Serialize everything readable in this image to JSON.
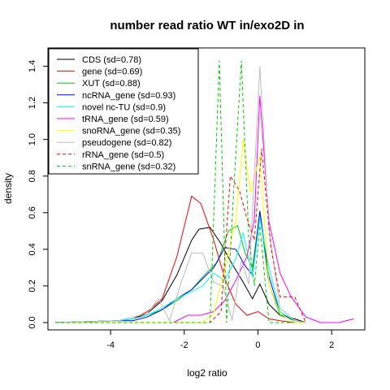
{
  "chart_data": {
    "type": "line",
    "title": "number read ratio WT in/exo2D in",
    "xlabel": "log2 ratio",
    "ylabel": "density",
    "xlim": [
      -5.7,
      2.9
    ],
    "ylim": [
      -0.04,
      1.5
    ],
    "x_ticks": [
      -4,
      -2,
      0,
      2
    ],
    "x_tick_labels": [
      "-4",
      "-2",
      "0",
      "2"
    ],
    "y_ticks": [
      0.0,
      0.2,
      0.4,
      0.6,
      0.8,
      1.0,
      1.2,
      1.4
    ],
    "y_tick_labels": [
      "0.0",
      "0.2",
      "0.4",
      "0.6",
      "0.8",
      "1.0",
      "1.2",
      "1.4"
    ],
    "grid": false,
    "legend_position": "top-left",
    "series": [
      {
        "name": "CDS (sd=0.78)",
        "color": "#000000",
        "dash": "solid",
        "x": [
          -5.5,
          -3.8,
          -3.4,
          -3.0,
          -2.6,
          -2.2,
          -1.8,
          -1.6,
          -1.3,
          -1.0,
          -0.7,
          -0.4,
          -0.15,
          0.05,
          0.3,
          0.6,
          1.0,
          1.3
        ],
        "y": [
          0.0,
          0.01,
          0.02,
          0.05,
          0.12,
          0.26,
          0.45,
          0.51,
          0.52,
          0.43,
          0.32,
          0.22,
          0.13,
          0.21,
          0.1,
          0.04,
          0.02,
          0.0
        ]
      },
      {
        "name": "gene (sd=0.69)",
        "color": "#ff0000",
        "dash": "solid",
        "x": [
          -5.5,
          -3.8,
          -3.4,
          -3.0,
          -2.6,
          -2.2,
          -1.8,
          -1.55,
          -1.2,
          -0.9,
          -0.6,
          -0.3,
          0.0,
          0.3,
          0.6,
          1.0,
          1.3
        ],
        "y": [
          0.0,
          0.01,
          0.02,
          0.06,
          0.13,
          0.36,
          0.69,
          0.65,
          0.45,
          0.24,
          0.1,
          0.04,
          0.06,
          0.02,
          0.01,
          0.0,
          0.0
        ]
      },
      {
        "name": "XUT (sd=0.88)",
        "color": "#00cc00",
        "dash": "solid",
        "x": [
          -5.5,
          -3.8,
          -3.4,
          -3.0,
          -2.6,
          -2.2,
          -1.8,
          -1.5,
          -1.1,
          -0.8,
          -0.55,
          -0.35,
          -0.15,
          0.05,
          0.3,
          0.6,
          1.0,
          1.3
        ],
        "y": [
          0.0,
          0.01,
          0.02,
          0.04,
          0.07,
          0.12,
          0.18,
          0.25,
          0.33,
          0.5,
          0.53,
          0.38,
          0.3,
          0.6,
          0.21,
          0.04,
          0.01,
          0.0
        ]
      },
      {
        "name": "ncRNA_gene (sd=0.93)",
        "color": "#0000ff",
        "dash": "solid",
        "x": [
          -5.5,
          -3.8,
          -3.4,
          -3.0,
          -2.6,
          -2.2,
          -1.8,
          -1.5,
          -1.2,
          -0.9,
          -0.6,
          -0.35,
          -0.15,
          0.05,
          0.3,
          0.6,
          1.0,
          1.3
        ],
        "y": [
          0.0,
          0.01,
          0.01,
          0.03,
          0.07,
          0.13,
          0.18,
          0.24,
          0.3,
          0.41,
          0.4,
          0.31,
          0.26,
          0.61,
          0.25,
          0.05,
          0.01,
          0.0
        ]
      },
      {
        "name": "novel nc-TU (sd=0.9)",
        "color": "#00ffff",
        "dash": "solid",
        "x": [
          -5.5,
          -3.8,
          -3.4,
          -3.0,
          -2.6,
          -2.2,
          -1.8,
          -1.5,
          -1.2,
          -0.9,
          -0.6,
          -0.4,
          -0.15,
          0.05,
          0.3,
          0.6,
          1.0,
          1.3
        ],
        "y": [
          0.0,
          0.01,
          0.02,
          0.04,
          0.08,
          0.13,
          0.17,
          0.2,
          0.27,
          0.23,
          0.35,
          0.49,
          0.25,
          0.57,
          0.3,
          0.06,
          0.01,
          0.0
        ]
      },
      {
        "name": "tRNA_gene (sd=0.59)",
        "color": "#ff00ff",
        "dash": "solid",
        "x": [
          -5.5,
          -2.3,
          -1.9,
          -1.55,
          -1.2,
          -0.9,
          -0.6,
          -0.3,
          -0.1,
          0.05,
          0.3,
          0.6,
          0.9,
          1.3,
          1.7,
          2.2,
          2.6
        ],
        "y": [
          0.0,
          0.0,
          0.04,
          0.04,
          0.06,
          0.12,
          0.23,
          0.36,
          0.56,
          1.24,
          0.55,
          0.27,
          0.14,
          0.03,
          0.0,
          0.0,
          0.02
        ]
      },
      {
        "name": "snoRNA_gene (sd=0.35)",
        "color": "#ffff00",
        "dash": "solid",
        "x": [
          -5.5,
          -1.5,
          -1.2,
          -0.9,
          -0.6,
          -0.4,
          -0.2,
          0.05,
          0.3,
          0.6,
          1.0,
          1.3
        ],
        "y": [
          0.0,
          0.0,
          0.05,
          0.3,
          0.56,
          1.0,
          0.71,
          0.91,
          0.21,
          0.05,
          0.0,
          0.0
        ]
      },
      {
        "name": "pseudogene (sd=0.82)",
        "color": "#bebebe",
        "dash": "solid",
        "x": [
          -5.5,
          -3.8,
          -3.0,
          -2.7,
          -2.4,
          -2.1,
          -1.8,
          -1.5,
          -1.2,
          -0.95,
          -0.7,
          -0.45,
          -0.25,
          0.05,
          0.3,
          0.6,
          1.0,
          1.3
        ],
        "y": [
          0.0,
          0.01,
          0.05,
          0.13,
          0.01,
          0.21,
          0.38,
          0.38,
          0.22,
          0.2,
          0.01,
          0.34,
          0.21,
          1.4,
          0.51,
          0.08,
          0.01,
          0.0
        ]
      },
      {
        "name": "rRNA_gene (sd=0.5)",
        "color": "#ff0000",
        "dash": "dashed",
        "x": [
          -5.5,
          -1.3,
          -1.0,
          -0.75,
          -0.5,
          -0.3,
          -0.1,
          0.1,
          0.35,
          0.6,
          1.0,
          1.3
        ],
        "y": [
          0.0,
          0.0,
          0.06,
          0.8,
          0.72,
          0.57,
          0.45,
          0.95,
          0.41,
          0.14,
          0.14,
          0.0
        ]
      },
      {
        "name": "snRNA_gene (sd=0.32)",
        "color": "#00cc00",
        "dash": "dashed",
        "x": [
          -5.5,
          -1.3,
          -1.05,
          -0.85,
          -0.65,
          -0.45,
          -0.25,
          -0.1,
          0.05,
          0.3,
          0.6,
          1.0
        ],
        "y": [
          0.0,
          0.0,
          1.43,
          0.0,
          0.75,
          1.43,
          0.46,
          0.2,
          0.53,
          0.0,
          0.0,
          0.0
        ]
      }
    ]
  }
}
